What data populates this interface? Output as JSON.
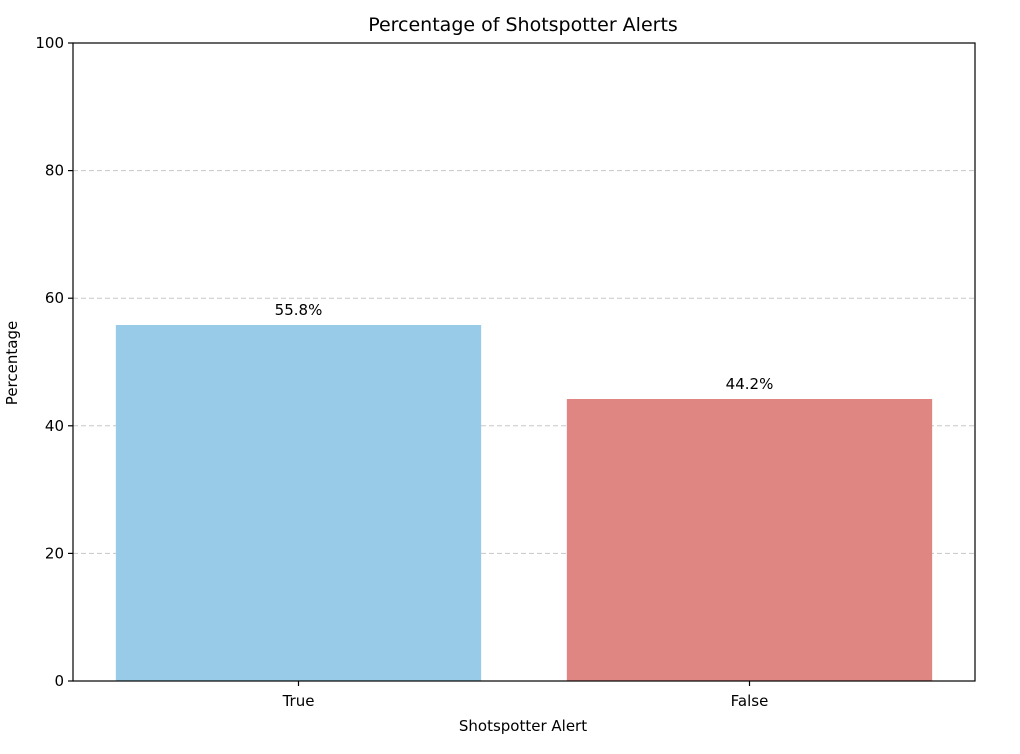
{
  "chart_data": {
    "type": "bar",
    "title": "Percentage of Shotspotter Alerts",
    "xlabel": "Shotspotter Alert",
    "ylabel": "Percentage",
    "categories": [
      "True",
      "False"
    ],
    "values": [
      55.8,
      44.2
    ],
    "data_labels": [
      "55.8%",
      "44.2%"
    ],
    "colors": [
      "#97cbe8",
      "#e08682"
    ],
    "ylim": [
      0,
      100
    ],
    "yticks": [
      0,
      20,
      40,
      60,
      80,
      100
    ],
    "ytick_labels": [
      "0",
      "20",
      "40",
      "60",
      "80",
      "100"
    ],
    "grid": "y-dashed",
    "grid_color": "#c8c8c8"
  }
}
